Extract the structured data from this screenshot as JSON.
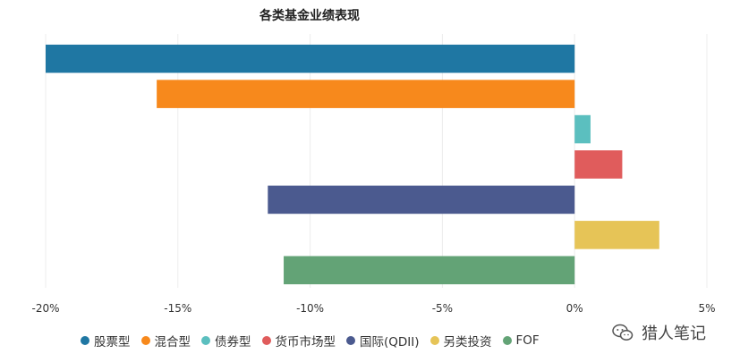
{
  "chart_data": {
    "type": "bar",
    "orientation": "horizontal",
    "title": "各类基金业绩表现",
    "xlim": [
      -20,
      5
    ],
    "xticks": [
      -20,
      -15,
      -10,
      -5,
      0,
      5
    ],
    "xtick_labels": [
      "-20%",
      "-15%",
      "-10%",
      "-5%",
      "0%",
      "5%"
    ],
    "categories": [
      "股票型",
      "混合型",
      "债券型",
      "货币市场型",
      "国际(QDII)",
      "另类投资",
      "FOF"
    ],
    "values": [
      -20.0,
      -15.8,
      0.6,
      1.8,
      -11.6,
      3.2,
      -11.0
    ],
    "colors": [
      "#1f77a3",
      "#f7891c",
      "#5bbfbf",
      "#e05c5c",
      "#4b5a8f",
      "#e6c457",
      "#63a376"
    ],
    "grid": true,
    "legend_position": "bottom"
  },
  "watermark": {
    "text": "猎人笔记",
    "icon": "wechat-icon"
  }
}
